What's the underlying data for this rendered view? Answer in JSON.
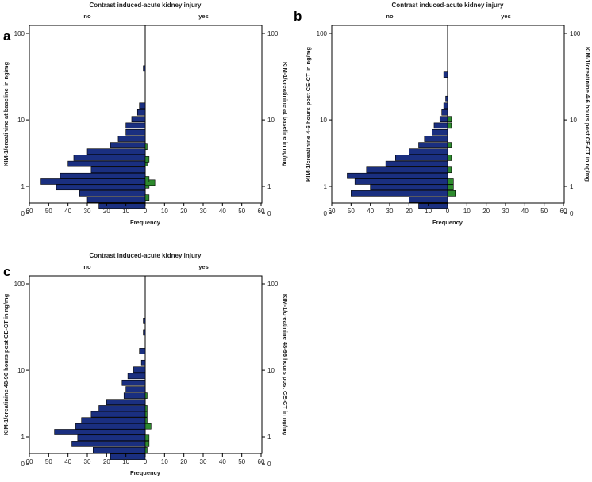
{
  "chart_data": [
    {
      "id": "a",
      "type": "bar",
      "orientation": "back-to-back horizontal histogram",
      "panel_label": "a",
      "title": "Contrast induced-acute kidney injury",
      "group_labels": [
        "no",
        "yes"
      ],
      "xlabel": "Frequency",
      "ylabel": "KIM-1/creatinine at baseline in ng/mg",
      "ylabel_right": "KIM-1/creatinine at baseline in ng/mg",
      "x_ticks": [
        60,
        50,
        40,
        30,
        20,
        10,
        0,
        10,
        20,
        30,
        40,
        50,
        60
      ],
      "y_ticks": [
        "100",
        "10",
        "1",
        "0"
      ],
      "y_tick_values": [
        100,
        10,
        1,
        0
      ],
      "y_scale": "log (x+1)",
      "xlim": [
        0,
        60
      ],
      "series": [
        {
          "name": "no",
          "y": [
            0.2,
            0.42,
            0.67,
            0.95,
            1.26,
            1.62,
            2.05,
            2.56,
            3.16,
            3.87,
            4.74,
            5.76,
            7.0,
            8.49,
            10.2,
            12.3,
            14.8,
            40.0
          ],
          "values": [
            24,
            30,
            34,
            46,
            54,
            44,
            28,
            40,
            37,
            30,
            18,
            14,
            10,
            10,
            7,
            4,
            3,
            1
          ]
        },
        {
          "name": "yes",
          "y": [
            0.5,
            1.05,
            1.2,
            1.4,
            2.6,
            3.0,
            4.5
          ],
          "values": [
            2,
            2,
            5,
            2,
            1,
            2,
            1
          ]
        }
      ]
    },
    {
      "id": "b",
      "type": "bar",
      "orientation": "back-to-back horizontal histogram",
      "panel_label": "b",
      "title": "Contrast induced-acute kidney injury",
      "group_labels": [
        "no",
        "yes"
      ],
      "xlabel": "Frequency",
      "ylabel": "KIM-1/creatinine 4-6 hours post CE-CT in ng/mg",
      "ylabel_right": "KIM-1/creatinine 4-6 hours post CE-CT in ng/mg",
      "x_ticks": [
        60,
        50,
        40,
        30,
        20,
        10,
        0,
        10,
        20,
        30,
        40,
        50,
        60
      ],
      "y_ticks": [
        "100",
        "10",
        "1",
        "0"
      ],
      "y_tick_values": [
        100,
        10,
        1,
        0
      ],
      "y_scale": "log (x+1)",
      "xlim": [
        0,
        60
      ],
      "series": [
        {
          "name": "no",
          "y": [
            0.2,
            0.42,
            0.67,
            0.95,
            1.26,
            1.62,
            2.05,
            2.56,
            3.16,
            3.87,
            4.74,
            5.76,
            7.0,
            8.49,
            10.2,
            12.3,
            14.8,
            17.8,
            34.0
          ],
          "values": [
            15,
            20,
            50,
            40,
            48,
            52,
            42,
            32,
            27,
            20,
            15,
            12,
            8,
            7,
            4,
            3,
            2,
            1,
            2
          ]
        },
        {
          "name": "yes",
          "y": [
            0.67,
            0.95,
            1.26,
            2.05,
            3.16,
            4.74,
            8.49,
            10.2
          ],
          "values": [
            4,
            3,
            3,
            2,
            2,
            2,
            2,
            2
          ]
        }
      ]
    },
    {
      "id": "c",
      "type": "bar",
      "orientation": "back-to-back horizontal histogram",
      "panel_label": "c",
      "title": "Contrast induced-acute kidney injury",
      "group_labels": [
        "no",
        "yes"
      ],
      "xlabel": "Frequency",
      "ylabel": "KIM-1/creatinine 48-96 hours post CE-CT in ng/mg",
      "ylabel_right": "KIM-1/creatinine 48-96 hours post CE-CT in ng/mg",
      "x_ticks": [
        60,
        50,
        40,
        30,
        20,
        10,
        0,
        10,
        20,
        30,
        40,
        50,
        60
      ],
      "y_ticks": [
        "100",
        "10",
        "1",
        "0"
      ],
      "y_tick_values": [
        100,
        10,
        1,
        0
      ],
      "y_scale": "log (x+1)",
      "xlim": [
        0,
        60
      ],
      "series": [
        {
          "name": "no",
          "y": [
            0.2,
            0.42,
            0.67,
            0.95,
            1.26,
            1.62,
            2.05,
            2.56,
            3.16,
            3.87,
            4.74,
            5.76,
            7.0,
            8.49,
            10.2,
            12.3,
            17.0,
            28.0,
            38.0
          ],
          "values": [
            18,
            27,
            38,
            35,
            47,
            36,
            33,
            28,
            24,
            20,
            11,
            10,
            12,
            9,
            6,
            2,
            3,
            1,
            1
          ]
        },
        {
          "name": "yes",
          "y": [
            0.42,
            0.67,
            0.95,
            1.62,
            2.05,
            2.56,
            3.16,
            4.74
          ],
          "values": [
            1,
            2,
            2,
            3,
            1,
            1,
            1,
            1
          ]
        }
      ]
    }
  ]
}
